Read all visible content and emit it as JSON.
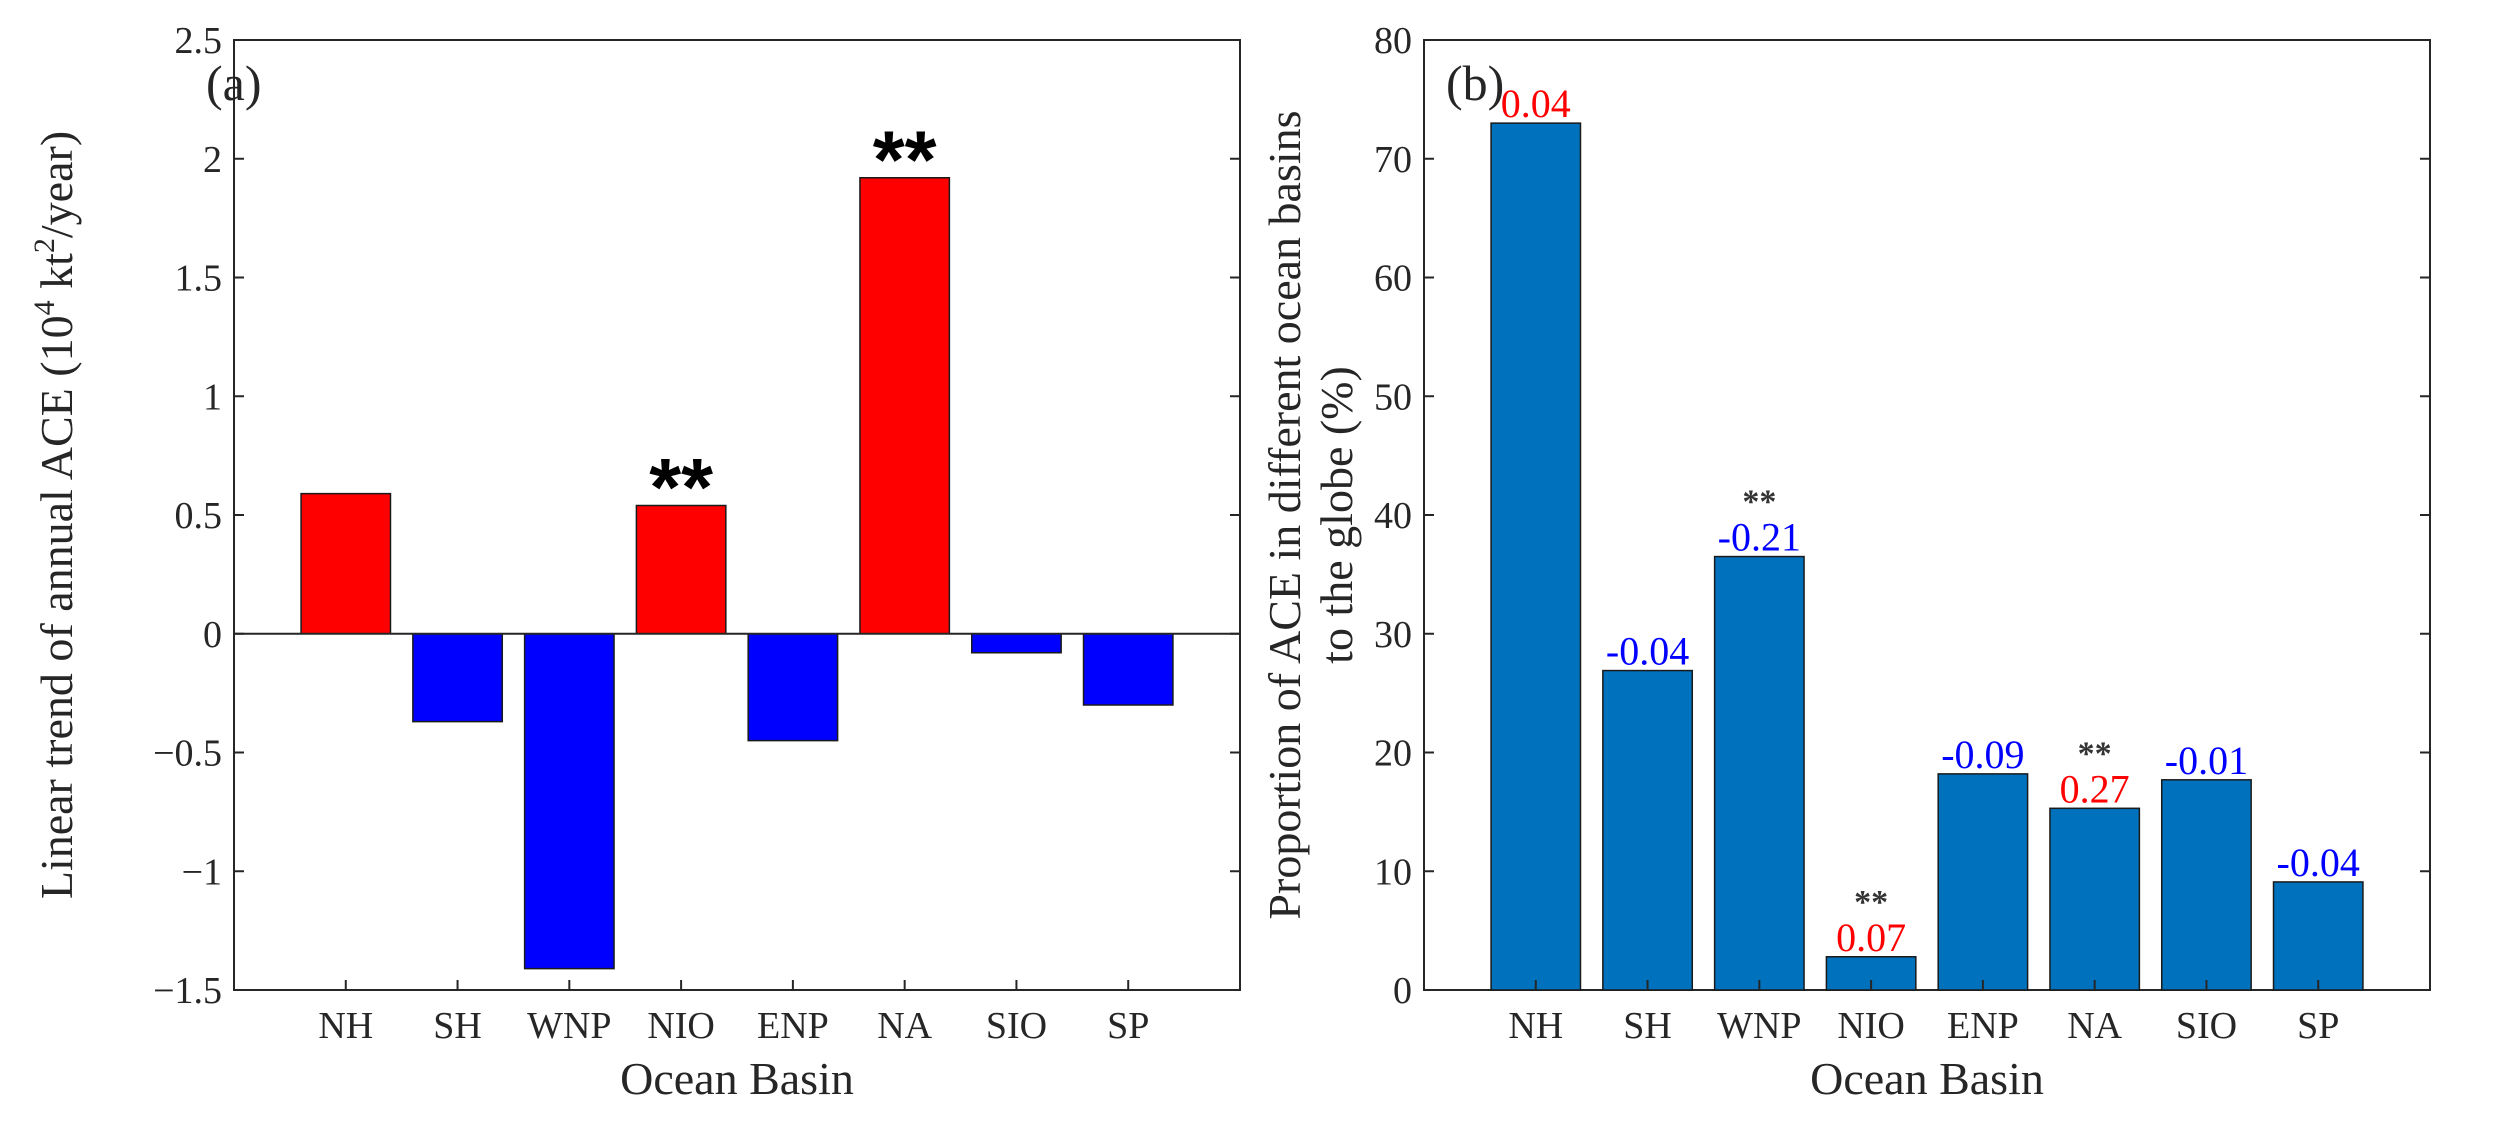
{
  "colors": {
    "positive": "#ff0000",
    "negative": "#0000ff",
    "bar_b": "#0072bd",
    "label_pos": "#ff0000",
    "label_neg": "#0000ff",
    "axis": "#262626"
  },
  "chart_data": [
    {
      "panel": "(a)",
      "type": "bar",
      "xlabel": "Ocean Basin",
      "ylabel_main": "Linear trend of annual ACE (10",
      "ylabel_sup": "4",
      "ylabel_mid": " kt",
      "ylabel_sup2": "2",
      "ylabel_end": "/year)",
      "ylim": [
        -1.5,
        2.5
      ],
      "yticks": [
        -1.5,
        -1,
        -0.5,
        0,
        0.5,
        1,
        1.5,
        2,
        2.5
      ],
      "ytick_labels": [
        "−1.5",
        "−1",
        "−0.5",
        "0",
        "0.5",
        "1",
        "1.5",
        "2",
        "2.5"
      ],
      "categories": [
        "NH",
        "SH",
        "WNP",
        "NIO",
        "ENP",
        "NA",
        "SIO",
        "SP"
      ],
      "values": [
        0.59,
        -0.37,
        -1.41,
        0.54,
        -0.45,
        1.92,
        -0.08,
        -0.3
      ],
      "significance": [
        "",
        "",
        "",
        "**",
        "",
        "**",
        "",
        ""
      ]
    },
    {
      "panel": "(b)",
      "type": "bar",
      "xlabel": "Ocean Basin",
      "ylabel_line1": "Proportion of ACE in different ocean basins",
      "ylabel_line2": "to the globe (%)",
      "ylim": [
        0,
        80
      ],
      "yticks": [
        0,
        10,
        20,
        30,
        40,
        50,
        60,
        70,
        80
      ],
      "ytick_labels": [
        "0",
        "10",
        "20",
        "30",
        "40",
        "50",
        "60",
        "70",
        "80"
      ],
      "categories": [
        "NH",
        "SH",
        "WNP",
        "NIO",
        "ENP",
        "NA",
        "SIO",
        "SP"
      ],
      "values": [
        73.0,
        26.9,
        36.5,
        2.8,
        18.2,
        15.3,
        17.7,
        9.1
      ],
      "bar_labels": [
        "0.04",
        "-0.04",
        "-0.21",
        "0.07",
        "-0.09",
        "0.27",
        "-0.01",
        "-0.04"
      ],
      "significance": [
        "",
        "",
        "**",
        "**",
        "",
        "**",
        "",
        ""
      ]
    }
  ]
}
